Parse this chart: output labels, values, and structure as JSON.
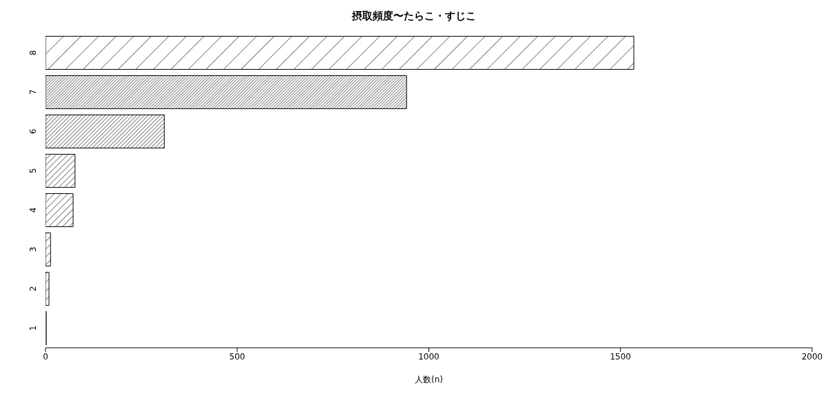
{
  "chart_data": {
    "type": "bar",
    "orientation": "horizontal",
    "title": "摂取頻度〜たらこ・すじこ",
    "xlabel": "人数(n)",
    "categories": [
      "8",
      "7",
      "6",
      "5",
      "4",
      "3",
      "2",
      "1"
    ],
    "values": [
      1535,
      942,
      310,
      77,
      72,
      13,
      9,
      2
    ],
    "color": "#000000",
    "xlim": [
      0,
      2000
    ],
    "xticks": [
      0,
      500,
      1000,
      1500,
      2000
    ],
    "grid": false
  }
}
